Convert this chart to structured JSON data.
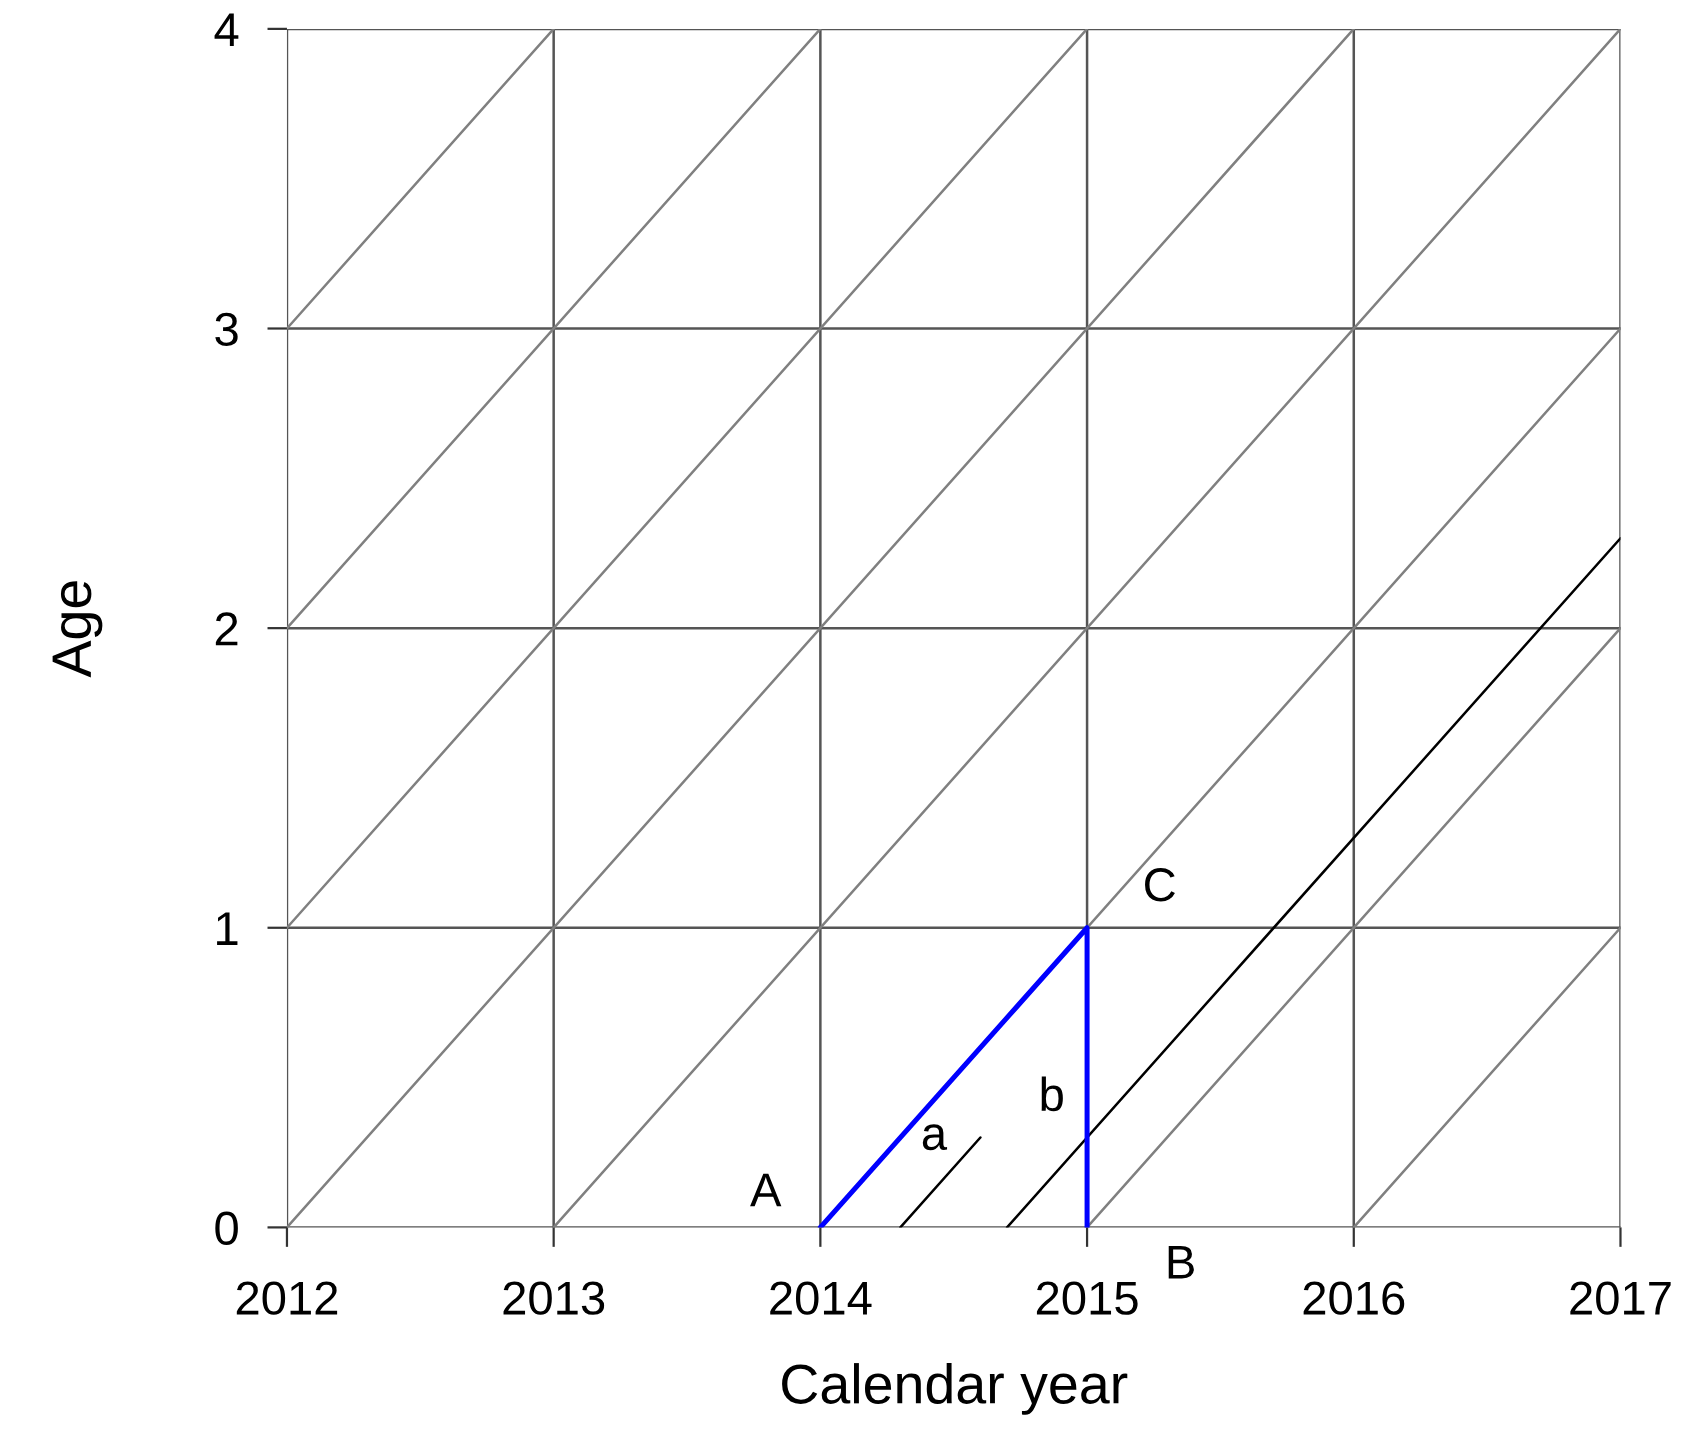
{
  "chart_data": {
    "type": "line",
    "xlabel": "Calendar year",
    "ylabel": "Age",
    "xlim": [
      2012,
      2017
    ],
    "ylim": [
      0,
      4
    ],
    "xticks": [
      2012,
      2013,
      2014,
      2015,
      2016,
      2017
    ],
    "yticks": [
      0,
      1,
      2,
      3,
      4
    ],
    "grid": true,
    "series": [
      {
        "color": "#808080",
        "x": [
          2012,
          2016
        ],
        "values": [
          0,
          4
        ]
      },
      {
        "color": "#808080",
        "x": [
          2013,
          2017
        ],
        "values": [
          0,
          4
        ]
      },
      {
        "color": "#808080",
        "x": [
          2014,
          2017
        ],
        "values": [
          0,
          3
        ]
      },
      {
        "color": "#808080",
        "x": [
          2015,
          2017
        ],
        "values": [
          0,
          2
        ]
      },
      {
        "color": "#808080",
        "x": [
          2016,
          2017
        ],
        "values": [
          0,
          1
        ]
      },
      {
        "color": "#808080",
        "x": [
          2012,
          2015
        ],
        "values": [
          1,
          4
        ]
      },
      {
        "color": "#808080",
        "x": [
          2012,
          2014
        ],
        "values": [
          2,
          4
        ]
      },
      {
        "color": "#808080",
        "x": [
          2012,
          2013
        ],
        "values": [
          3,
          4
        ]
      },
      {
        "color": "#000000",
        "x": [
          2014.3,
          2014.6
        ],
        "values": [
          0,
          0.3
        ]
      },
      {
        "color": "#000000",
        "x": [
          2014.7,
          2017
        ],
        "values": [
          0,
          2.3
        ]
      },
      {
        "color": "#0000ff",
        "x": [
          2014,
          2015,
          2015
        ],
        "values": [
          0,
          1,
          0
        ]
      }
    ],
    "annotations": [
      {
        "text": "A",
        "x": 2014,
        "y": 0
      },
      {
        "text": "a",
        "x": 2014.6,
        "y": 0.3
      },
      {
        "text": "b",
        "x": 2015,
        "y": 0.3
      },
      {
        "text": "C",
        "x": 2015,
        "y": 1
      },
      {
        "text": "B",
        "x": 2015,
        "y": 0
      }
    ]
  }
}
